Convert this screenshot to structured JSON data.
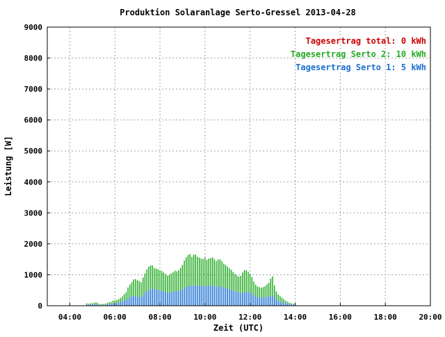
{
  "chart_data": {
    "type": "bar",
    "title": "Produktion Solaranlage Serto-Gressel 2013-04-28",
    "xlabel": "Zeit (UTC)",
    "ylabel": "Leistung [W]",
    "x_unit": "hours (UTC)",
    "xlim": [
      3,
      20
    ],
    "ylim": [
      0,
      9000
    ],
    "x_ticks": [
      "04:00",
      "06:00",
      "08:00",
      "10:00",
      "12:00",
      "14:00",
      "16:00",
      "18:00",
      "20:00"
    ],
    "y_ticks": [
      "0",
      "1000",
      "2000",
      "3000",
      "4000",
      "5000",
      "6000",
      "7000",
      "8000",
      "9000"
    ],
    "grid": true,
    "legend_position": "top-right",
    "stacked": true,
    "legend": [
      {
        "label": "Tagesertrag total: 0 kWh",
        "color": "#cc0000"
      },
      {
        "label": "Tagesertrag Serto 2: 10 kWh",
        "color": "#22aa22"
      },
      {
        "label": "Tagesertrag Serto 1: 5 kWh",
        "color": "#1a6fd1"
      }
    ],
    "x_start": 4.75,
    "x_step": 0.0833,
    "series": [
      {
        "name": "Tagesertrag Serto 1",
        "color": "#1a6fd1",
        "values": [
          40,
          30,
          40,
          40,
          50,
          50,
          40,
          20,
          20,
          30,
          30,
          40,
          60,
          60,
          80,
          80,
          90,
          100,
          120,
          140,
          170,
          200,
          250,
          280,
          300,
          330,
          310,
          290,
          300,
          280,
          350,
          420,
          470,
          500,
          520,
          560,
          540,
          520,
          510,
          490,
          480,
          470,
          450,
          430,
          420,
          440,
          460,
          480,
          470,
          480,
          500,
          520,
          560,
          610,
          640,
          650,
          620,
          650,
          670,
          660,
          650,
          640,
          630,
          650,
          620,
          640,
          650,
          660,
          630,
          600,
          620,
          640,
          610,
          580,
          560,
          560,
          540,
          520,
          490,
          470,
          450,
          440,
          420,
          420,
          430,
          450,
          440,
          430,
          400,
          340,
          300,
          280,
          270,
          260,
          270,
          280,
          290,
          290,
          320,
          340,
          280,
          200,
          160,
          140,
          120,
          100,
          80,
          70,
          60,
          50,
          40,
          30
        ]
      },
      {
        "name": "Tagesertrag Serto 2",
        "color": "#22aa22",
        "values": [
          40,
          30,
          40,
          40,
          50,
          60,
          40,
          30,
          30,
          30,
          40,
          50,
          60,
          60,
          80,
          90,
          100,
          110,
          130,
          160,
          200,
          240,
          340,
          400,
          460,
          520,
          550,
          530,
          500,
          480,
          560,
          620,
          700,
          760,
          780,
          740,
          680,
          680,
          670,
          660,
          640,
          600,
          570,
          540,
          580,
          600,
          620,
          650,
          640,
          670,
          720,
          800,
          900,
          950,
          1000,
          1020,
          960,
          1000,
          980,
          920,
          900,
          880,
          880,
          900,
          860,
          880,
          890,
          900,
          870,
          840,
          870,
          860,
          820,
          780,
          760,
          700,
          670,
          640,
          600,
          560,
          530,
          500,
          550,
          650,
          720,
          700,
          650,
          600,
          520,
          440,
          380,
          340,
          330,
          320,
          330,
          350,
          400,
          450,
          560,
          610,
          380,
          260,
          200,
          170,
          140,
          110,
          80,
          60,
          40,
          30,
          20,
          10
        ]
      }
    ]
  }
}
